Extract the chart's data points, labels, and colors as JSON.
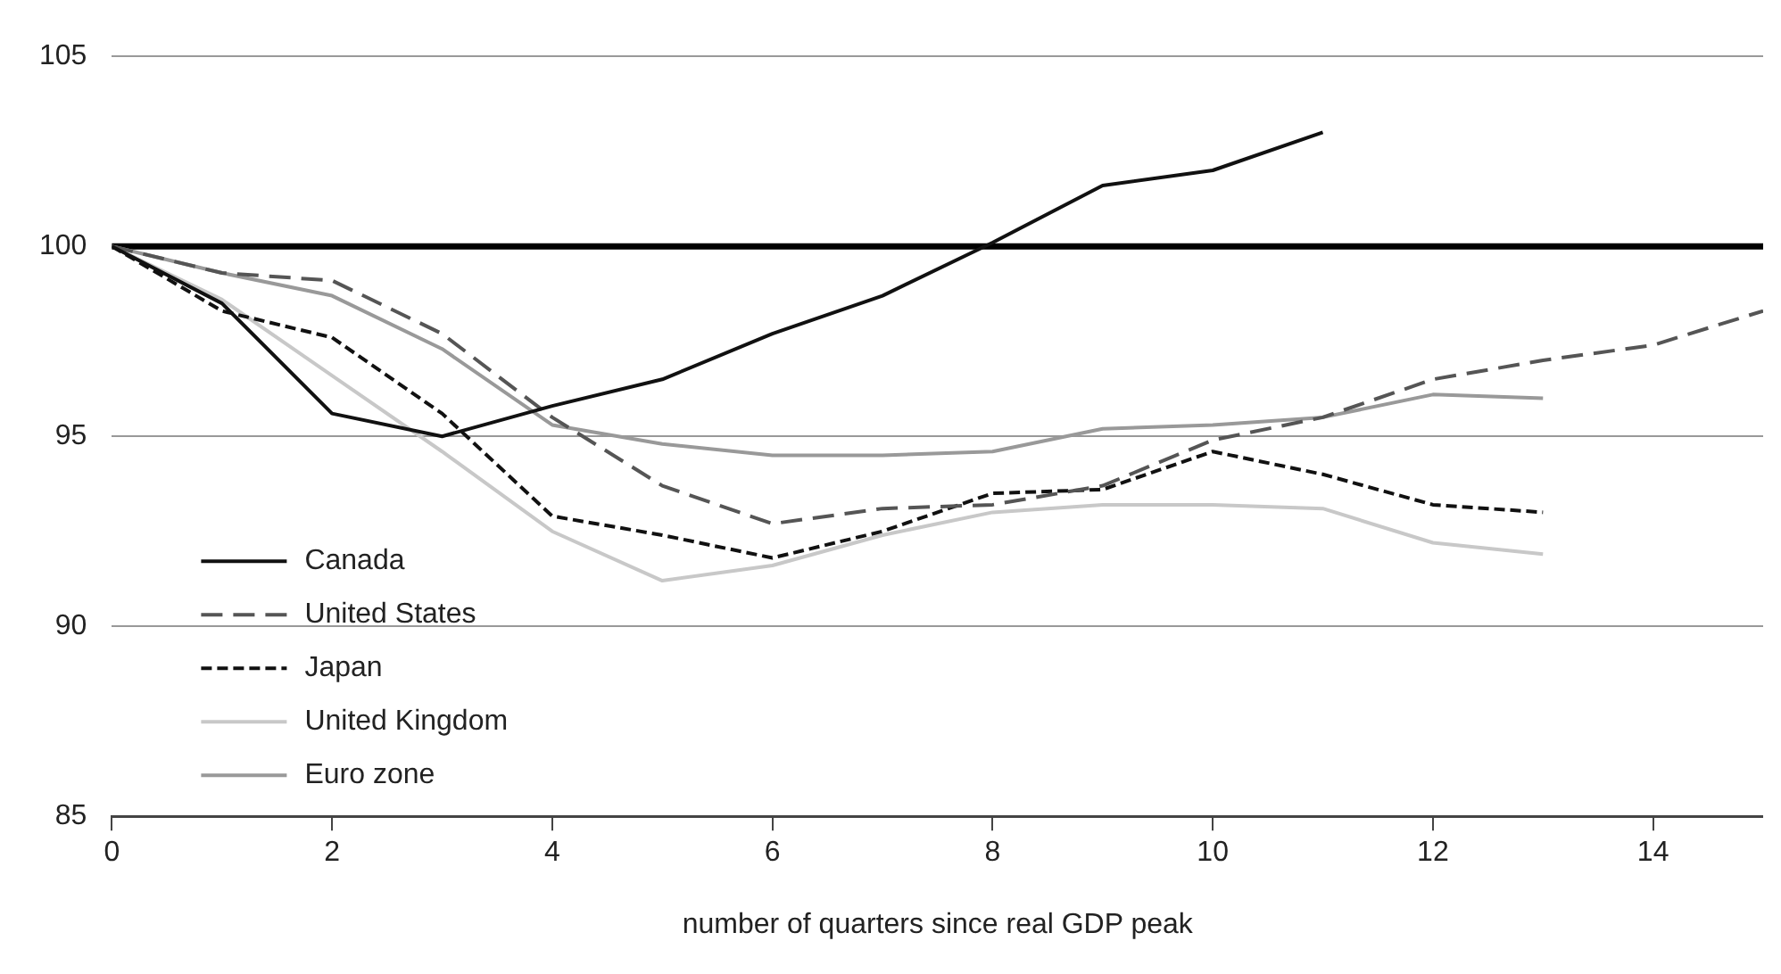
{
  "chart_data": {
    "type": "line",
    "xlabel": "number of quarters since real GDP peak",
    "xlim": [
      0,
      15
    ],
    "xticks": [
      0,
      2,
      4,
      6,
      8,
      10,
      12,
      14
    ],
    "ylim": [
      85,
      105
    ],
    "yticks": [
      85,
      90,
      95,
      100,
      105
    ],
    "grid": "y",
    "legend": "bottom left",
    "marker": "none",
    "ref_lines": [
      {
        "axis": "y",
        "value": 100,
        "color": "#000000"
      }
    ],
    "series": [
      {
        "name": "Canada",
        "color": "#111111",
        "line_style": "solid",
        "x": [
          0,
          1,
          2,
          3,
          4,
          5,
          6,
          7,
          8,
          9,
          10,
          11
        ],
        "values": [
          100,
          98.5,
          95.6,
          95.0,
          95.8,
          96.5,
          97.7,
          98.7,
          100.1,
          101.6,
          102.0,
          103.0
        ]
      },
      {
        "name": "United States",
        "color": "#555555",
        "line_style": "dashed",
        "x": [
          0,
          1,
          2,
          3,
          4,
          5,
          6,
          7,
          8,
          9,
          10,
          11,
          12,
          13,
          14,
          15
        ],
        "values": [
          100,
          99.3,
          99.1,
          97.7,
          95.5,
          93.7,
          92.7,
          93.1,
          93.2,
          93.7,
          94.9,
          95.5,
          96.5,
          97.0,
          97.4,
          98.3
        ]
      },
      {
        "name": "Japan",
        "color": "#111111",
        "line_style": "dashed",
        "x": [
          0,
          1,
          2,
          3,
          4,
          5,
          6,
          7,
          8,
          9,
          10,
          11,
          12,
          13
        ],
        "values": [
          100,
          98.3,
          97.6,
          95.6,
          92.9,
          92.4,
          91.8,
          92.5,
          93.5,
          93.6,
          94.6,
          94.0,
          93.2,
          93.0
        ]
      },
      {
        "name": "United Kingdom",
        "color": "#c8c8c8",
        "line_style": "solid",
        "x": [
          0,
          1,
          2,
          3,
          4,
          5,
          6,
          7,
          8,
          9,
          10,
          11,
          12,
          13
        ],
        "values": [
          100,
          98.6,
          96.6,
          94.6,
          92.5,
          91.2,
          91.6,
          92.4,
          93.0,
          93.2,
          93.2,
          93.1,
          92.2,
          91.9
        ]
      },
      {
        "name": "Euro zone",
        "color": "#999999",
        "line_style": "solid",
        "x": [
          0,
          1,
          2,
          3,
          4,
          5,
          6,
          7,
          8,
          9,
          10,
          11,
          12,
          13
        ],
        "values": [
          100,
          99.3,
          98.7,
          97.3,
          95.3,
          94.8,
          94.5,
          94.5,
          94.6,
          95.2,
          95.3,
          95.5,
          96.1,
          96.0
        ]
      }
    ]
  }
}
